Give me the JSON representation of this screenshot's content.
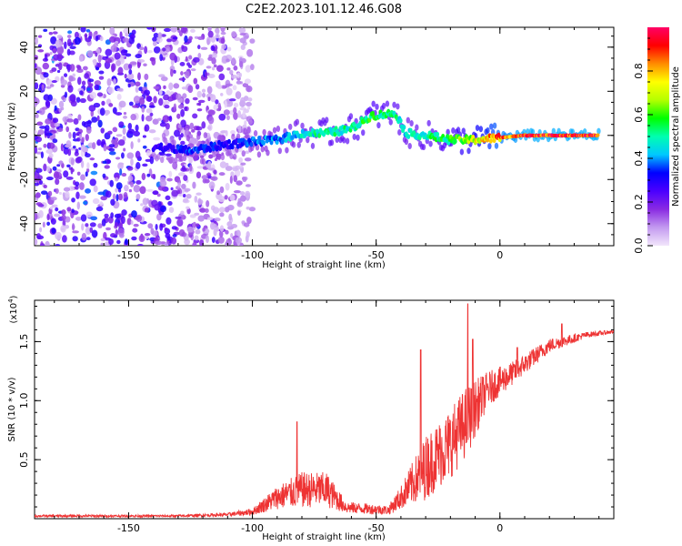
{
  "title": "C2E2.2023.101.12.46.G08",
  "chart_data": [
    {
      "type": "heatmap",
      "title": "C2E2.2023.101.12.46.G08",
      "xlabel": "Height of straight line (km)",
      "ylabel": "Frequency (Hz)",
      "xlim": [
        -188,
        46
      ],
      "ylim": [
        -50,
        49
      ],
      "xticks": [
        -150,
        -100,
        -50,
        0
      ],
      "yticks": [
        -40,
        -20,
        0,
        20,
        40
      ],
      "xtick_labels": [
        "-150",
        "-100",
        "-50",
        "0"
      ],
      "ytick_labels": [
        "-40",
        "-20",
        "0",
        "20",
        "40"
      ],
      "colorbar": {
        "label": "Normalized spectral amplitude",
        "range": [
          0,
          1
        ],
        "ticks": [
          0.0,
          0.2,
          0.4,
          0.6,
          0.8
        ],
        "tick_labels": [
          "0.0",
          "0.2",
          "0.4",
          "0.6",
          "0.8"
        ],
        "colors": [
          "#f2e6fb",
          "#c39af0",
          "#8a2be2",
          "#4b00ff",
          "#0000ff",
          "#00c8ff",
          "#00ffb0",
          "#00ff00",
          "#b4ff00",
          "#ffff00",
          "#ff8c00",
          "#ff0000",
          "#ff0066"
        ]
      },
      "noise_region": {
        "x": [
          -188,
          -100
        ],
        "y": [
          -50,
          49
        ]
      },
      "ridge": {
        "description_points": [
          {
            "x": -140,
            "y": -5,
            "amplitude": 0.25
          },
          {
            "x": -125,
            "y": -7,
            "amplitude": 0.35
          },
          {
            "x": -110,
            "y": -4,
            "amplitude": 0.3
          },
          {
            "x": -100,
            "y": -3,
            "amplitude": 0.35
          },
          {
            "x": -90,
            "y": -2,
            "amplitude": 0.4
          },
          {
            "x": -80,
            "y": 1,
            "amplitude": 0.45
          },
          {
            "x": -70,
            "y": 1,
            "amplitude": 0.5
          },
          {
            "x": -60,
            "y": 3,
            "amplitude": 0.5
          },
          {
            "x": -52,
            "y": 9,
            "amplitude": 0.55
          },
          {
            "x": -42,
            "y": 10,
            "amplitude": 0.5
          },
          {
            "x": -38,
            "y": 1,
            "amplitude": 0.45
          },
          {
            "x": -30,
            "y": 0,
            "amplitude": 0.5
          },
          {
            "x": -20,
            "y": -2,
            "amplitude": 0.55
          },
          {
            "x": -10,
            "y": -2,
            "amplitude": 0.7
          },
          {
            "x": 0,
            "y": -1,
            "amplitude": 0.85
          },
          {
            "x": 10,
            "y": 0,
            "amplitude": 0.9
          },
          {
            "x": 20,
            "y": 0,
            "amplitude": 0.9
          },
          {
            "x": 30,
            "y": 0,
            "amplitude": 0.9
          },
          {
            "x": 40,
            "y": 0,
            "amplitude": 0.9
          }
        ]
      }
    },
    {
      "type": "line",
      "xlabel": "Height of straight line (km)",
      "ylabel": "SNR (10 * v/v)",
      "y_multiplier": "(x10",
      "y_multiplier_exp": "4",
      "y_multiplier_close": ")",
      "xlim": [
        -188,
        46
      ],
      "ylim": [
        0,
        1.85
      ],
      "xticks": [
        -150,
        -100,
        -50,
        0
      ],
      "yticks": [
        0.5,
        1.0,
        1.5
      ],
      "xtick_labels": [
        "-150",
        "-100",
        "-50",
        "0"
      ],
      "ytick_labels": [
        "0.5",
        "1.0",
        "1.5"
      ],
      "color": "#ee3333",
      "envelope": [
        {
          "x": -188,
          "base": 0.02,
          "amp": 0.02
        },
        {
          "x": -130,
          "base": 0.02,
          "amp": 0.02
        },
        {
          "x": -110,
          "base": 0.03,
          "amp": 0.03
        },
        {
          "x": -100,
          "base": 0.05,
          "amp": 0.06
        },
        {
          "x": -90,
          "base": 0.15,
          "amp": 0.2
        },
        {
          "x": -80,
          "base": 0.2,
          "amp": 0.3
        },
        {
          "x": -70,
          "base": 0.2,
          "amp": 0.3
        },
        {
          "x": -62,
          "base": 0.08,
          "amp": 0.1
        },
        {
          "x": -45,
          "base": 0.06,
          "amp": 0.08
        },
        {
          "x": -40,
          "base": 0.15,
          "amp": 0.2
        },
        {
          "x": -30,
          "base": 0.35,
          "amp": 0.55
        },
        {
          "x": -20,
          "base": 0.55,
          "amp": 0.6
        },
        {
          "x": -13,
          "base": 0.75,
          "amp": 0.6
        },
        {
          "x": -5,
          "base": 1.05,
          "amp": 0.3
        },
        {
          "x": 5,
          "base": 1.2,
          "amp": 0.2
        },
        {
          "x": 20,
          "base": 1.45,
          "amp": 0.12
        },
        {
          "x": 35,
          "base": 1.55,
          "amp": 0.05
        },
        {
          "x": 46,
          "base": 1.58,
          "amp": 0.03
        }
      ],
      "spikes": [
        {
          "x": -82,
          "y": 0.82
        },
        {
          "x": -32,
          "y": 1.43
        },
        {
          "x": -13,
          "y": 1.82
        },
        {
          "x": -11,
          "y": 1.52
        },
        {
          "x": 7,
          "y": 1.45
        },
        {
          "x": 25,
          "y": 1.65
        }
      ]
    }
  ]
}
